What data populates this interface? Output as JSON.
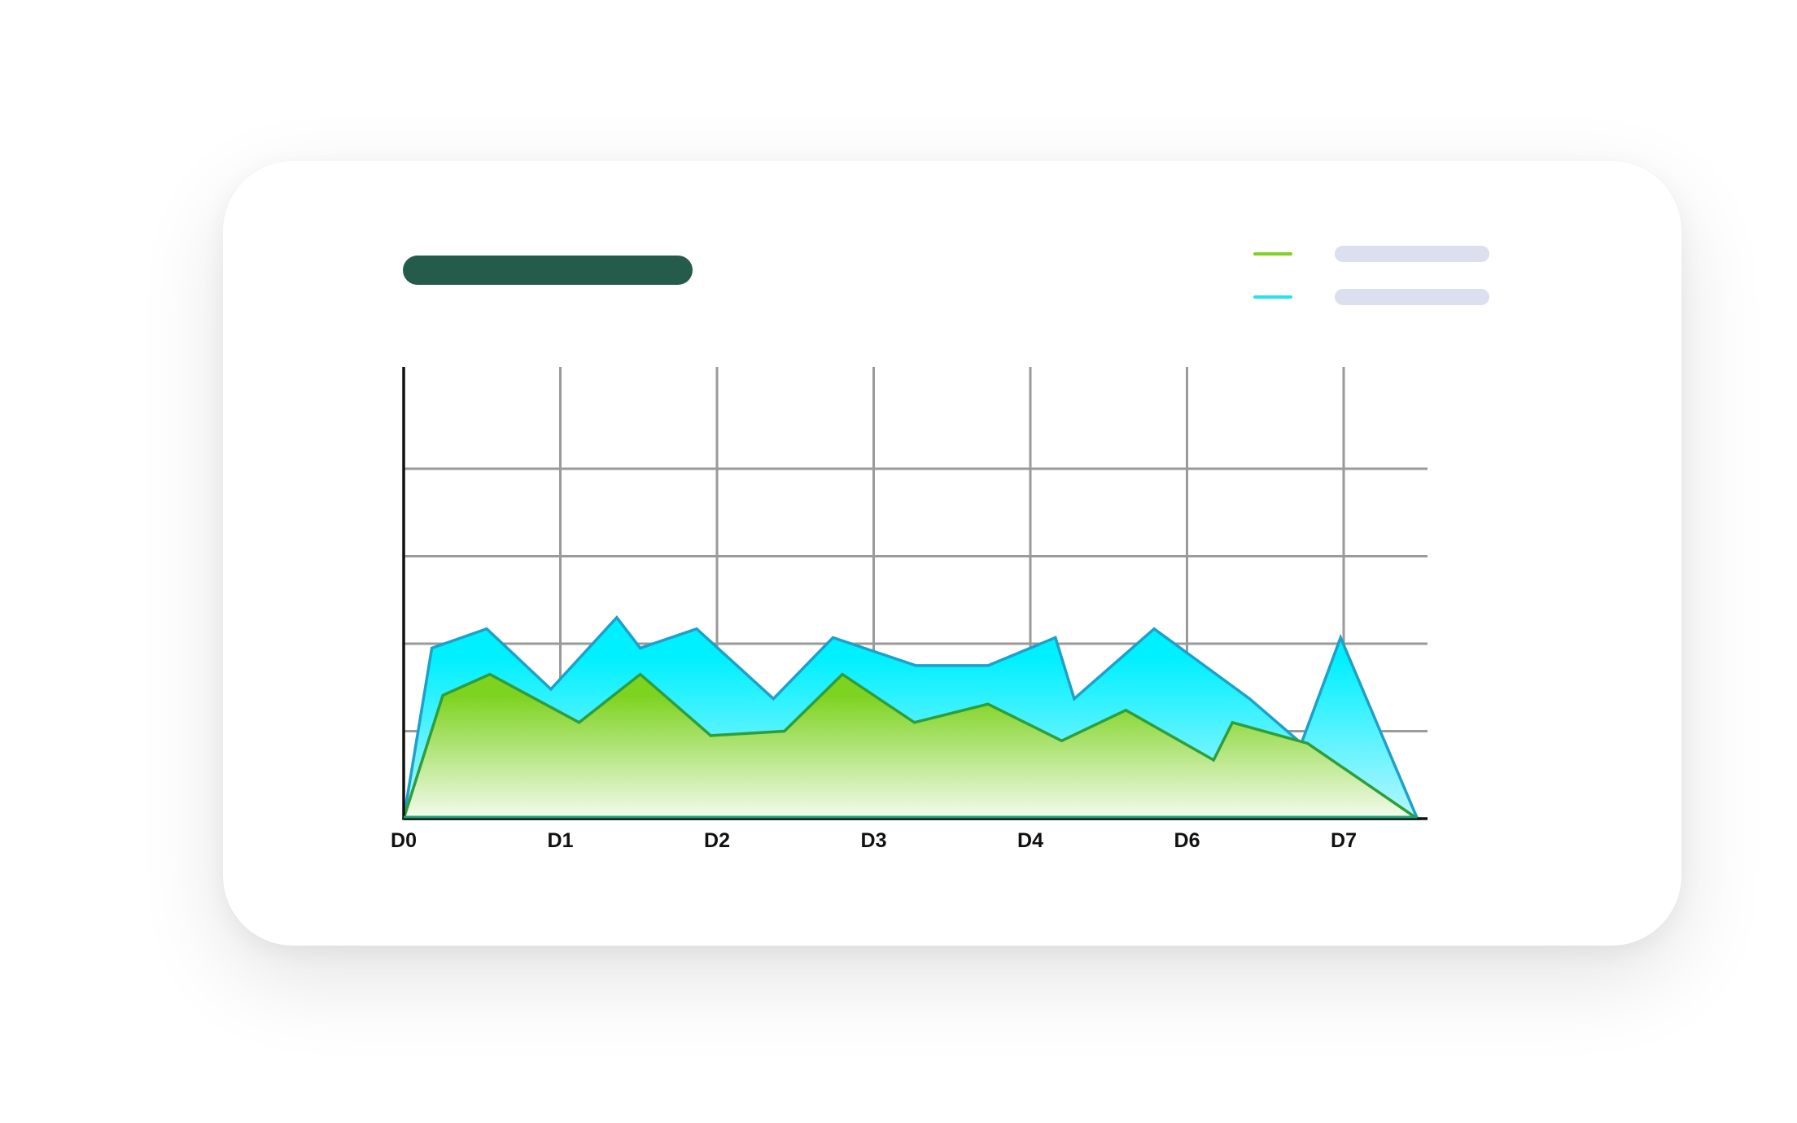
{
  "colors": {
    "title_bar": "#245b4b",
    "legend_placeholder": "#dcdff0",
    "grid": "#9a9a9a",
    "axis": "#111111"
  },
  "chart_data": {
    "type": "area",
    "x_ticks": [
      "D0",
      "D1",
      "D2",
      "D3",
      "D4",
      "D6",
      "D7"
    ],
    "xlim": [
      0,
      6.5
    ],
    "ylim": [
      0,
      5
    ],
    "grid": true,
    "legend": "top-right",
    "series": [
      {
        "color_stroke": "#1fa0c9",
        "color_fill_top": "#00f0ff",
        "color_fill_bottom": "#b6f6ff",
        "legend_swatch": "#23e3f2",
        "points": [
          [
            0,
            0
          ],
          [
            0.18,
            1.95
          ],
          [
            0.53,
            2.17
          ],
          [
            0.94,
            1.48
          ],
          [
            1.36,
            2.3
          ],
          [
            1.51,
            1.95
          ],
          [
            1.87,
            2.17
          ],
          [
            2.36,
            1.37
          ],
          [
            2.74,
            2.07
          ],
          [
            3.27,
            1.75
          ],
          [
            3.73,
            1.75
          ],
          [
            4.16,
            2.07
          ],
          [
            4.28,
            1.37
          ],
          [
            4.79,
            2.17
          ],
          [
            5.4,
            1.37
          ],
          [
            5.73,
            0.86
          ],
          [
            5.98,
            2.07
          ],
          [
            6.47,
            0
          ]
        ]
      },
      {
        "color_stroke": "#2f9e3a",
        "color_fill_top": "#7ed321",
        "color_fill_bottom": "#f4fbee",
        "legend_swatch": "#7ed321",
        "points": [
          [
            0,
            0
          ],
          [
            0.25,
            1.41
          ],
          [
            0.55,
            1.65
          ],
          [
            1.12,
            1.1
          ],
          [
            1.51,
            1.65
          ],
          [
            1.96,
            0.95
          ],
          [
            2.43,
            1.0
          ],
          [
            2.8,
            1.65
          ],
          [
            3.26,
            1.1
          ],
          [
            3.73,
            1.31
          ],
          [
            4.2,
            0.89
          ],
          [
            4.61,
            1.24
          ],
          [
            5.17,
            0.67
          ],
          [
            5.29,
            1.1
          ],
          [
            5.77,
            0.86
          ],
          [
            6.47,
            0
          ]
        ]
      }
    ]
  }
}
